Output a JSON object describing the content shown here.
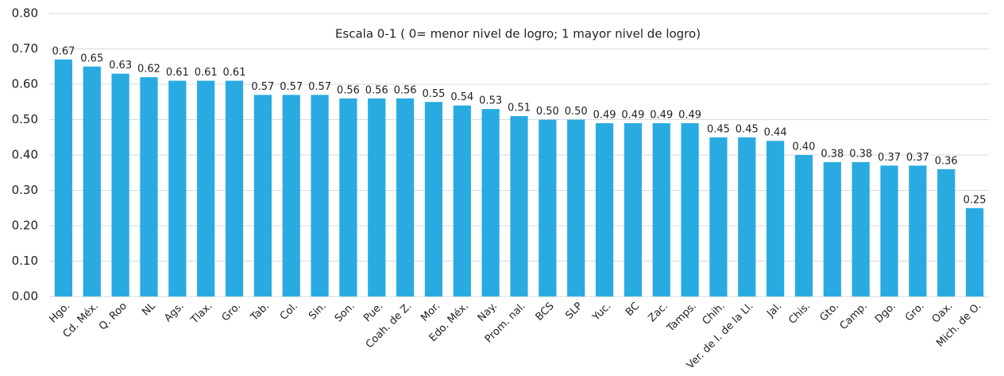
{
  "chart_data": {
    "type": "bar",
    "annotation": "Escala 0-1 ( 0= menor nivel de logro; 1 mayor nivel de logro)",
    "categories": [
      "Hgo.",
      "Cd. Méx.",
      "Q. Roo",
      "NL",
      "Ags.",
      "Tlax.",
      "Gro.",
      "Tab.",
      "Col.",
      "Sin.",
      "Son.",
      "Pue.",
      "Coah. de Z.",
      "Mor.",
      "Edo. Méx.",
      "Nay.",
      "Prom. nal.",
      "BCS",
      "SLP",
      "Yuc.",
      "BC",
      "Zac.",
      "Tamps.",
      "Chih.",
      "Ver. de I. de la Ll.",
      "Jal.",
      "Chis.",
      "Gto.",
      "Camp.",
      "Dgo.",
      "Gro.",
      "Oax.",
      "Mich. de O."
    ],
    "values": [
      0.67,
      0.65,
      0.63,
      0.62,
      0.61,
      0.61,
      0.61,
      0.57,
      0.57,
      0.57,
      0.56,
      0.56,
      0.56,
      0.55,
      0.54,
      0.53,
      0.51,
      0.5,
      0.5,
      0.49,
      0.49,
      0.49,
      0.49,
      0.45,
      0.45,
      0.44,
      0.4,
      0.38,
      0.38,
      0.37,
      0.37,
      0.36,
      0.25
    ],
    "value_labels": [
      "0.67",
      "0.65",
      "0.63",
      "0.62",
      "0.61",
      "0.61",
      "0.61",
      "0.57",
      "0.57",
      "0.57",
      "0.56",
      "0.56",
      "0.56",
      "0.55",
      "0.54",
      "0.53",
      "0.51",
      "0.50",
      "0.50",
      "0.49",
      "0.49",
      "0.49",
      "0.49",
      "0.45",
      "0.45",
      "0.44",
      "0.40",
      "0.38",
      "0.38",
      "0.37",
      "0.37",
      "0.36",
      "0.25"
    ],
    "color": "#29abe2",
    "ylim": [
      0,
      0.8
    ],
    "yticks": [
      {
        "value": 0,
        "label": "0.00"
      },
      {
        "value": 0.1,
        "label": "0.10"
      },
      {
        "value": 0.2,
        "label": "0.20"
      },
      {
        "value": 0.3,
        "label": "0.30"
      },
      {
        "value": 0.4,
        "label": "0.40"
      },
      {
        "value": 0.5,
        "label": "0.50"
      },
      {
        "value": 0.6,
        "label": "0.60"
      },
      {
        "value": 0.7,
        "label": "0.70"
      },
      {
        "value": 0.8,
        "label": "0.80"
      }
    ],
    "grid": true
  }
}
